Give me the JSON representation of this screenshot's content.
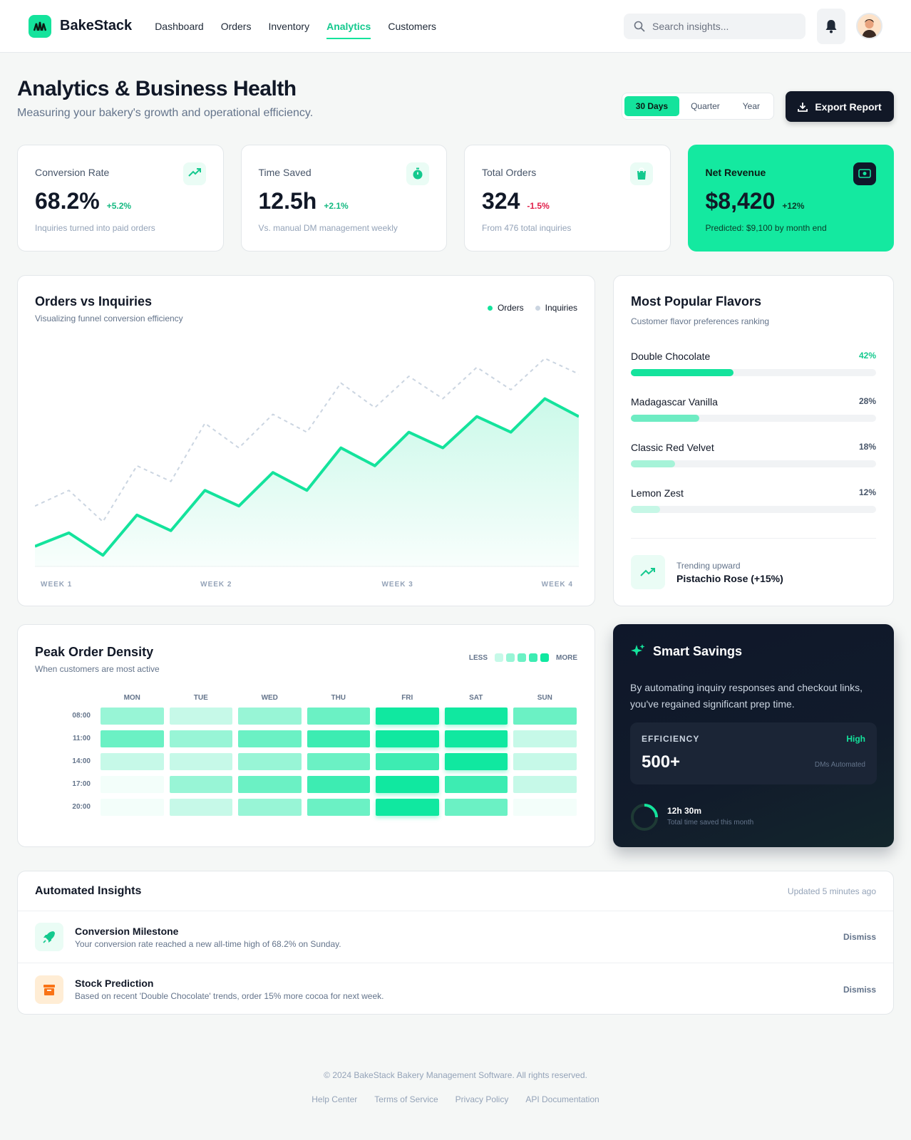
{
  "header": {
    "brand": "BakeStack",
    "nav": [
      "Dashboard",
      "Orders",
      "Inventory",
      "Analytics",
      "Customers"
    ],
    "active_nav": 3,
    "search_placeholder": "Search insights..."
  },
  "page": {
    "title": "Analytics & Business Health",
    "subtitle": "Measuring your bakery's growth and operational efficiency.",
    "ranges": [
      "30 Days",
      "Quarter",
      "Year"
    ],
    "active_range": 0,
    "export": "Export Report"
  },
  "kpis": [
    {
      "label": "Conversion Rate",
      "value": "68.2%",
      "change": "+5.2%",
      "trend": "up",
      "note": "Inquiries turned into paid orders",
      "highlight": false
    },
    {
      "label": "Time Saved",
      "value": "12.5h",
      "change": "+2.1%",
      "trend": "up",
      "note": "Vs. manual DM management weekly",
      "highlight": false
    },
    {
      "label": "Total Orders",
      "value": "324",
      "change": "-1.5%",
      "trend": "down",
      "note": "From 476 total inquiries",
      "highlight": false
    },
    {
      "label": "Net Revenue",
      "value": "$8,420",
      "change": "+12%",
      "trend": "up",
      "note": "Predicted: $9,100 by month end",
      "highlight": true
    }
  ],
  "orders_chart": {
    "type": "line",
    "title": "Orders vs Inquiries",
    "subtitle": "Visualizing funnel conversion efficiency",
    "x_labels": [
      "WEEK 1",
      "WEEK 2",
      "WEEK 3",
      "WEEK 4"
    ],
    "ylim": [
      0,
      100
    ],
    "series": [
      {
        "name": "Orders",
        "color": "#14e39c",
        "values": [
          9,
          15,
          5,
          23,
          16,
          34,
          27,
          42,
          34,
          53,
          45,
          60,
          53,
          67,
          60,
          75,
          67
        ]
      },
      {
        "name": "Inquiries",
        "color": "#cbd5e1",
        "values": [
          27,
          34,
          20,
          45,
          38,
          64,
          53,
          68,
          60,
          82,
          71,
          85,
          75,
          89,
          79,
          93,
          86
        ]
      }
    ]
  },
  "flavors": {
    "title": "Most Popular Flavors",
    "subtitle": "Customer flavor preferences ranking",
    "xlim": [
      0,
      100
    ],
    "items": [
      {
        "name": "Double Chocolate",
        "value": 42,
        "value_label": "42%",
        "color": "#14e39c"
      },
      {
        "name": "Madagascar Vanilla",
        "value": 28,
        "value_label": "28%",
        "color": "#6eecc3"
      },
      {
        "name": "Classic Red Velvet",
        "value": 18,
        "value_label": "18%",
        "color": "#a6f3d8"
      },
      {
        "name": "Lemon Zest",
        "value": 12,
        "value_label": "12%",
        "color": "#c6f7e6"
      }
    ],
    "trend_label": "Trending upward",
    "trend_text": "Pistachio Rose (+15%)"
  },
  "heatmap": {
    "title": "Peak Order Density",
    "subtitle": "When customers are most active",
    "less": "LESS",
    "more": "MORE",
    "days": [
      "MON",
      "TUE",
      "WED",
      "THU",
      "FRI",
      "SAT",
      "SUN"
    ],
    "times": [
      "08:00",
      "11:00",
      "14:00",
      "17:00",
      "20:00"
    ],
    "levels": [
      [
        2,
        1,
        2,
        3,
        5,
        5,
        3
      ],
      [
        3,
        2,
        3,
        4,
        5,
        5,
        1
      ],
      [
        1,
        1,
        2,
        3,
        4,
        5,
        1
      ],
      [
        0,
        2,
        3,
        4,
        5,
        4,
        1
      ],
      [
        0,
        1,
        2,
        3,
        5,
        3,
        0
      ]
    ],
    "max_level": 5,
    "color": "#10e8a0"
  },
  "savings": {
    "title": "Smart Savings",
    "text": "By automating inquiry responses and checkout links, you've regained significant prep time.",
    "efficiency_label": "EFFICIENCY",
    "efficiency_rating": "High",
    "value": "500+",
    "value_note": "DMs Automated",
    "time": "12h 30m",
    "time_note": "Total time saved this month"
  },
  "insights": {
    "title": "Automated Insights",
    "updated": "Updated 5 minutes ago",
    "items": [
      {
        "title": "Conversion Milestone",
        "text": "Your conversion rate reached a new all-time high of 68.2% on Sunday.",
        "action": "Dismiss",
        "icon": "rocket"
      },
      {
        "title": "Stock Prediction",
        "text": "Based on recent 'Double Chocolate' trends, order 15% more cocoa for next week.",
        "action": "Dismiss",
        "icon": "box"
      }
    ]
  },
  "footer": {
    "copyright": "© 2024 BakeStack Bakery Management Software. All rights reserved.",
    "links": [
      "Help Center",
      "Terms of Service",
      "Privacy Policy",
      "API Documentation"
    ]
  }
}
